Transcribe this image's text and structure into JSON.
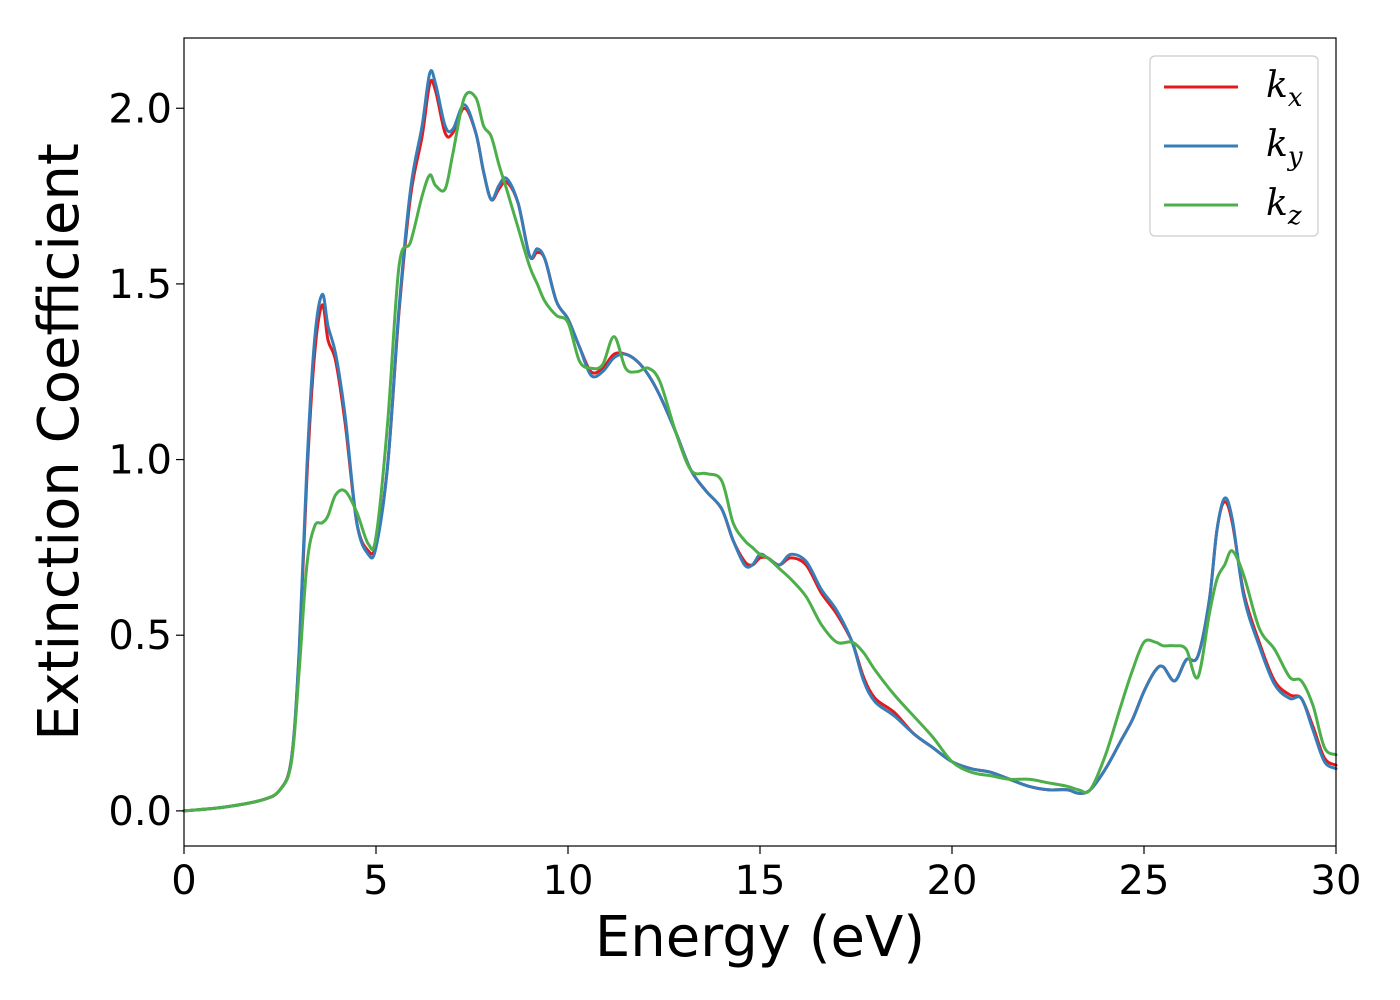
{
  "chart_data": {
    "type": "line",
    "xlabel": "Energy (eV)",
    "ylabel": "Extinction Coefficient",
    "xlim": [
      0,
      30
    ],
    "ylim": [
      -0.1,
      2.2
    ],
    "xticks": [
      0,
      5,
      10,
      15,
      20,
      25,
      30
    ],
    "xtick_labels": [
      "0",
      "5",
      "10",
      "15",
      "20",
      "25",
      "30"
    ],
    "yticks": [
      0.0,
      0.5,
      1.0,
      1.5,
      2.0
    ],
    "ytick_labels": [
      "0.0",
      "0.5",
      "1.0",
      "1.5",
      "2.0"
    ],
    "grid": false,
    "legend_position": "top-right",
    "series": [
      {
        "name": "k_x",
        "label_main": "k",
        "label_sub": "x",
        "color": "#e41a1c",
        "x": [
          0,
          1,
          2,
          2.5,
          2.8,
          3.0,
          3.2,
          3.4,
          3.6,
          3.75,
          3.95,
          4.2,
          4.5,
          4.8,
          5.0,
          5.3,
          5.6,
          5.9,
          6.2,
          6.4,
          6.55,
          6.8,
          7.0,
          7.3,
          7.6,
          7.8,
          8.0,
          8.2,
          8.4,
          8.7,
          9.0,
          9.2,
          9.4,
          9.7,
          10.0,
          10.3,
          10.6,
          10.9,
          11.2,
          11.5,
          11.8,
          12.1,
          12.4,
          12.8,
          13.2,
          13.6,
          14.0,
          14.3,
          14.6,
          14.8,
          15.0,
          15.2,
          15.5,
          15.8,
          16.2,
          16.6,
          17.0,
          17.4,
          17.7,
          18.0,
          18.5,
          19.0,
          19.5,
          20.0,
          20.5,
          21.0,
          21.5,
          22.0,
          22.5,
          23.0,
          23.3,
          23.6,
          24.0,
          24.4,
          24.7,
          25.0,
          25.3,
          25.5,
          25.8,
          26.1,
          26.4,
          26.7,
          26.9,
          27.1,
          27.3,
          27.6,
          28.0,
          28.4,
          28.8,
          29.1,
          29.4,
          29.7,
          30.0
        ],
        "y": [
          0.0,
          0.01,
          0.03,
          0.06,
          0.15,
          0.45,
          0.95,
          1.3,
          1.44,
          1.34,
          1.28,
          1.1,
          0.82,
          0.74,
          0.76,
          0.98,
          1.42,
          1.75,
          1.92,
          2.07,
          2.05,
          1.93,
          1.93,
          2.0,
          1.93,
          1.82,
          1.74,
          1.77,
          1.79,
          1.73,
          1.58,
          1.59,
          1.57,
          1.45,
          1.4,
          1.32,
          1.25,
          1.26,
          1.3,
          1.3,
          1.28,
          1.24,
          1.18,
          1.08,
          0.97,
          0.91,
          0.86,
          0.77,
          0.71,
          0.7,
          0.72,
          0.72,
          0.7,
          0.72,
          0.7,
          0.62,
          0.56,
          0.48,
          0.38,
          0.32,
          0.28,
          0.22,
          0.18,
          0.14,
          0.12,
          0.11,
          0.09,
          0.07,
          0.06,
          0.06,
          0.05,
          0.06,
          0.12,
          0.2,
          0.26,
          0.34,
          0.4,
          0.41,
          0.37,
          0.43,
          0.44,
          0.6,
          0.8,
          0.88,
          0.82,
          0.62,
          0.48,
          0.37,
          0.33,
          0.32,
          0.24,
          0.15,
          0.13
        ]
      },
      {
        "name": "k_y",
        "label_main": "k",
        "label_sub": "y",
        "color": "#377eb8",
        "x": [
          0,
          1,
          2,
          2.5,
          2.8,
          3.0,
          3.2,
          3.4,
          3.6,
          3.75,
          3.95,
          4.2,
          4.5,
          4.8,
          5.0,
          5.3,
          5.6,
          5.9,
          6.2,
          6.4,
          6.55,
          6.8,
          7.0,
          7.3,
          7.6,
          7.8,
          8.0,
          8.2,
          8.4,
          8.7,
          9.0,
          9.2,
          9.4,
          9.7,
          10.0,
          10.3,
          10.6,
          10.9,
          11.2,
          11.5,
          11.8,
          12.1,
          12.4,
          12.8,
          13.2,
          13.6,
          14.0,
          14.3,
          14.6,
          14.8,
          15.0,
          15.2,
          15.5,
          15.8,
          16.2,
          16.6,
          17.0,
          17.4,
          17.7,
          18.0,
          18.5,
          19.0,
          19.5,
          20.0,
          20.5,
          21.0,
          21.5,
          22.0,
          22.5,
          23.0,
          23.3,
          23.6,
          24.0,
          24.4,
          24.7,
          25.0,
          25.3,
          25.5,
          25.8,
          26.1,
          26.4,
          26.7,
          26.9,
          27.1,
          27.3,
          27.6,
          28.0,
          28.4,
          28.8,
          29.1,
          29.4,
          29.7,
          30.0
        ],
        "y": [
          0.0,
          0.01,
          0.03,
          0.06,
          0.15,
          0.46,
          0.98,
          1.34,
          1.47,
          1.38,
          1.3,
          1.12,
          0.82,
          0.73,
          0.75,
          0.98,
          1.43,
          1.77,
          1.95,
          2.1,
          2.07,
          1.95,
          1.94,
          2.01,
          1.93,
          1.82,
          1.74,
          1.78,
          1.8,
          1.73,
          1.58,
          1.6,
          1.57,
          1.45,
          1.4,
          1.32,
          1.24,
          1.25,
          1.29,
          1.3,
          1.28,
          1.24,
          1.18,
          1.08,
          0.97,
          0.91,
          0.86,
          0.77,
          0.7,
          0.7,
          0.73,
          0.72,
          0.7,
          0.73,
          0.71,
          0.63,
          0.57,
          0.48,
          0.37,
          0.31,
          0.27,
          0.22,
          0.18,
          0.14,
          0.12,
          0.11,
          0.09,
          0.07,
          0.06,
          0.06,
          0.05,
          0.06,
          0.12,
          0.2,
          0.26,
          0.34,
          0.4,
          0.41,
          0.37,
          0.43,
          0.44,
          0.6,
          0.8,
          0.89,
          0.83,
          0.61,
          0.47,
          0.36,
          0.32,
          0.32,
          0.23,
          0.14,
          0.12
        ]
      },
      {
        "name": "k_z",
        "label_main": "k",
        "label_sub": "z",
        "color": "#4daf4a",
        "x": [
          0,
          1,
          2,
          2.5,
          2.8,
          3.0,
          3.2,
          3.4,
          3.6,
          3.75,
          3.95,
          4.2,
          4.5,
          4.8,
          5.0,
          5.3,
          5.6,
          5.9,
          6.2,
          6.4,
          6.55,
          6.8,
          7.0,
          7.3,
          7.6,
          7.8,
          8.0,
          8.2,
          8.4,
          8.7,
          9.0,
          9.2,
          9.4,
          9.7,
          10.0,
          10.3,
          10.6,
          10.9,
          11.2,
          11.5,
          11.8,
          12.1,
          12.4,
          12.8,
          13.2,
          13.6,
          14.0,
          14.3,
          14.6,
          14.8,
          15.0,
          15.2,
          15.5,
          15.8,
          16.2,
          16.6,
          17.0,
          17.4,
          17.7,
          18.0,
          18.5,
          19.0,
          19.5,
          20.0,
          20.5,
          21.0,
          21.5,
          22.0,
          22.5,
          23.0,
          23.3,
          23.6,
          24.0,
          24.4,
          24.7,
          25.0,
          25.3,
          25.5,
          25.8,
          26.1,
          26.4,
          26.7,
          26.9,
          27.1,
          27.3,
          27.6,
          28.0,
          28.4,
          28.8,
          29.1,
          29.4,
          29.7,
          30.0
        ],
        "y": [
          0.0,
          0.01,
          0.03,
          0.06,
          0.14,
          0.4,
          0.7,
          0.81,
          0.82,
          0.84,
          0.9,
          0.91,
          0.85,
          0.76,
          0.78,
          1.1,
          1.55,
          1.62,
          1.75,
          1.81,
          1.78,
          1.77,
          1.87,
          2.03,
          2.03,
          1.95,
          1.92,
          1.84,
          1.77,
          1.66,
          1.55,
          1.5,
          1.45,
          1.41,
          1.39,
          1.28,
          1.26,
          1.27,
          1.35,
          1.26,
          1.25,
          1.26,
          1.22,
          1.08,
          0.97,
          0.96,
          0.94,
          0.82,
          0.77,
          0.75,
          0.73,
          0.72,
          0.69,
          0.66,
          0.61,
          0.53,
          0.48,
          0.48,
          0.45,
          0.4,
          0.33,
          0.27,
          0.21,
          0.14,
          0.11,
          0.1,
          0.09,
          0.09,
          0.08,
          0.07,
          0.06,
          0.06,
          0.16,
          0.3,
          0.4,
          0.48,
          0.48,
          0.47,
          0.47,
          0.46,
          0.38,
          0.56,
          0.66,
          0.7,
          0.74,
          0.67,
          0.52,
          0.46,
          0.38,
          0.37,
          0.3,
          0.18,
          0.16
        ]
      }
    ]
  }
}
